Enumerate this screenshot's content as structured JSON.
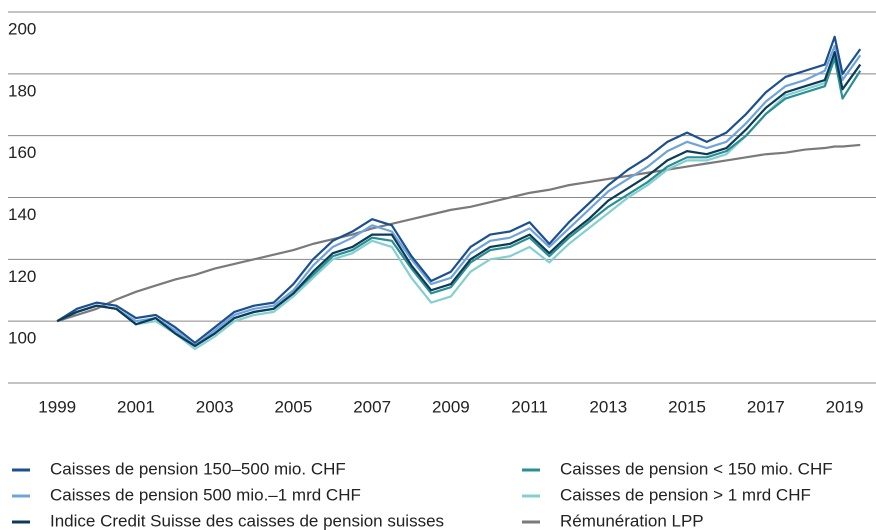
{
  "chart_data": {
    "type": "line",
    "x": [
      1999,
      1999.5,
      2000,
      2000.5,
      2001,
      2001.5,
      2002,
      2002.5,
      2003,
      2003.5,
      2004,
      2004.5,
      2005,
      2005.5,
      2006,
      2006.5,
      2007,
      2007.5,
      2008,
      2008.5,
      2009,
      2009.5,
      2010,
      2010.5,
      2011,
      2011.5,
      2012,
      2012.5,
      2013,
      2013.5,
      2014,
      2014.5,
      2015,
      2015.5,
      2016,
      2016.5,
      2017,
      2017.5,
      2018,
      2018.5,
      2018.75,
      2018.95,
      2019.4
    ],
    "series": [
      {
        "name": "Caisses de pension 150–500 mio. CHF",
        "color": "#1b4f8f",
        "values": [
          100,
          104,
          106,
          105,
          101,
          102,
          98,
          93,
          98,
          103,
          105,
          106,
          112,
          120,
          126,
          129,
          133,
          131,
          121,
          113,
          116,
          124,
          128,
          129,
          132,
          125,
          132,
          138,
          144,
          149,
          153,
          158,
          161,
          158,
          161,
          167,
          174,
          179,
          181,
          183,
          192,
          180,
          188
        ]
      },
      {
        "name": "Caisses de pension 500 mio.–1 mrd CHF",
        "color": "#6fa3dc",
        "values": [
          100,
          103,
          105,
          104,
          100,
          101,
          97,
          92,
          97,
          102,
          104,
          105,
          110,
          118,
          124,
          127,
          131,
          129,
          120,
          112,
          114,
          122,
          126,
          127,
          130,
          124,
          130,
          136,
          142,
          146,
          150,
          155,
          158,
          156,
          158,
          164,
          171,
          176,
          178,
          181,
          189,
          178,
          186
        ]
      },
      {
        "name": "Indice Credit Suisse des caisses de pension suisses",
        "color": "#0c3b57",
        "values": [
          100,
          103,
          105,
          104,
          99,
          101,
          96,
          92,
          96,
          101,
          103,
          104,
          109,
          116,
          122,
          124,
          128,
          128,
          118,
          110,
          112,
          120,
          124,
          125,
          128,
          122,
          128,
          133,
          139,
          143,
          147,
          152,
          155,
          154,
          156,
          162,
          169,
          174,
          176,
          178,
          187,
          175,
          183
        ]
      },
      {
        "name": "Caisses de pension < 150 mio. CHF",
        "color": "#2a8f94",
        "values": [
          100,
          103,
          105,
          104,
          99,
          101,
          96,
          92,
          96,
          101,
          103,
          104,
          109,
          115,
          121,
          123,
          127,
          126,
          117,
          109,
          111,
          119,
          123,
          124,
          127,
          121,
          127,
          132,
          137,
          141,
          145,
          150,
          153,
          153,
          155,
          160,
          167,
          172,
          174,
          176,
          185,
          172,
          181
        ]
      },
      {
        "name": "Caisses de pension > 1 mrd CHF",
        "color": "#86cfcf",
        "values": [
          100,
          103,
          105,
          104,
          99,
          100,
          96,
          91,
          95,
          100,
          102,
          103,
          108,
          114,
          120,
          122,
          126,
          124,
          114,
          106,
          108,
          116,
          120,
          121,
          124,
          119,
          125,
          130,
          135,
          140,
          144,
          149,
          152,
          152,
          154,
          160,
          167,
          173,
          175,
          177,
          186,
          175,
          183
        ]
      },
      {
        "name": "Rémunération LPP",
        "color": "#7a7a7a",
        "values": [
          100,
          102,
          104,
          107,
          109.5,
          111.5,
          113.5,
          115,
          117,
          118.5,
          120,
          121.5,
          123,
          125,
          126.5,
          128,
          130,
          131.5,
          133,
          134.5,
          136,
          137,
          138.5,
          140,
          141.5,
          142.5,
          144,
          145,
          146,
          147,
          148,
          149,
          150,
          151,
          152,
          153,
          154,
          154.5,
          155.5,
          156,
          156.5,
          156.5,
          157
        ]
      }
    ],
    "xlim": [
      1997.75,
      2019.8
    ],
    "xticks": [
      1999,
      2001,
      2003,
      2005,
      2007,
      2009,
      2011,
      2013,
      2015,
      2017,
      2019
    ],
    "ylim": [
      80,
      200
    ],
    "yticks": [
      100,
      120,
      140,
      160,
      180,
      200
    ],
    "grid": true
  }
}
